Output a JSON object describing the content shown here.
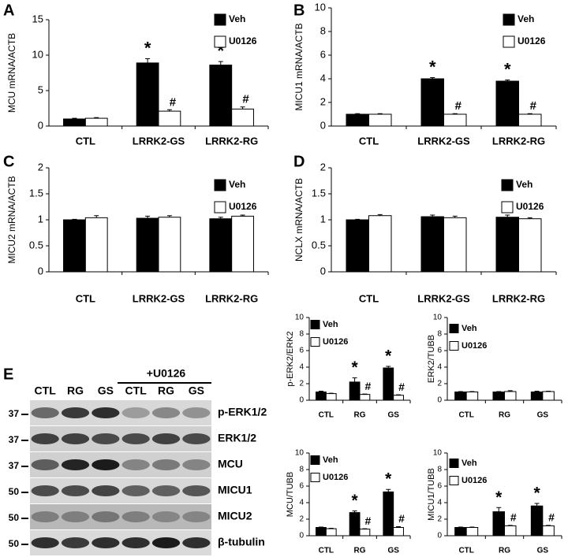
{
  "chart_data": [
    {
      "type": "bar",
      "label": "A",
      "y_label": "MCU mRNA/ACTB",
      "categories": [
        "CTL",
        "LRRK2-GS",
        "LRRK2-RG"
      ],
      "ylim": [
        0,
        15
      ],
      "yticks": [
        0,
        5,
        10,
        15
      ],
      "series": [
        {
          "name": "Veh",
          "color": "#000000",
          "values": [
            1.0,
            8.9,
            8.6
          ],
          "errors": [
            0.1,
            0.6,
            0.5
          ],
          "value_labels": [
            null,
            "*",
            "*"
          ]
        },
        {
          "name": "U0126",
          "color": "#ffffff",
          "values": [
            1.1,
            2.1,
            2.4
          ],
          "errors": [
            0.1,
            0.2,
            0.3
          ],
          "value_labels": [
            null,
            "#",
            "#"
          ]
        }
      ]
    },
    {
      "type": "bar",
      "label": "B",
      "y_label": "MICU1 mRNA/ACTB",
      "categories": [
        "CTL",
        "LRRK2-GS",
        "LRRK2-RG"
      ],
      "ylim": [
        0,
        10
      ],
      "yticks": [
        0,
        2,
        4,
        6,
        8,
        10
      ],
      "series": [
        {
          "name": "Veh",
          "color": "#000000",
          "values": [
            1.0,
            4.0,
            3.8
          ],
          "errors": [
            0.05,
            0.1,
            0.1
          ],
          "value_labels": [
            null,
            "*",
            "*"
          ]
        },
        {
          "name": "U0126",
          "color": "#ffffff",
          "values": [
            1.0,
            1.0,
            1.0
          ],
          "errors": [
            0.05,
            0.05,
            0.05
          ],
          "value_labels": [
            null,
            "#",
            "#"
          ]
        }
      ]
    },
    {
      "type": "bar",
      "label": "C",
      "y_label": "MICU2 mRNA/ACTB",
      "categories": [
        "CTL",
        "LRRK2-GS",
        "LRRK2-RG"
      ],
      "ylim": [
        0,
        2
      ],
      "yticks": [
        0,
        0.5,
        1,
        1.5,
        2
      ],
      "series": [
        {
          "name": "Veh",
          "color": "#000000",
          "values": [
            1.0,
            1.03,
            1.02
          ],
          "errors": [
            0.01,
            0.04,
            0.03
          ]
        },
        {
          "name": "U0126",
          "color": "#ffffff",
          "values": [
            1.04,
            1.05,
            1.07
          ],
          "errors": [
            0.04,
            0.03,
            0.02
          ]
        }
      ]
    },
    {
      "type": "bar",
      "label": "D",
      "y_label": "NCLX mRNA/ACTB",
      "categories": [
        "CTL",
        "LRRK2-GS",
        "LRRK2-RG"
      ],
      "ylim": [
        0,
        2
      ],
      "yticks": [
        0,
        0.5,
        1,
        1.5,
        2
      ],
      "series": [
        {
          "name": "Veh",
          "color": "#000000",
          "values": [
            1.0,
            1.06,
            1.05
          ],
          "errors": [
            0.01,
            0.03,
            0.04
          ]
        },
        {
          "name": "U0126",
          "color": "#ffffff",
          "values": [
            1.08,
            1.04,
            1.02
          ],
          "errors": [
            0.02,
            0.03,
            0.02
          ]
        }
      ]
    },
    {
      "type": "bar",
      "y_label": "p-ERK2/ERK2",
      "categories": [
        "CTL",
        "RG",
        "GS"
      ],
      "ylim": [
        0,
        10
      ],
      "yticks": [
        0,
        2,
        4,
        6,
        8,
        10
      ],
      "series": [
        {
          "name": "Veh",
          "color": "#000000",
          "values": [
            1.0,
            2.2,
            3.9
          ],
          "errors": [
            0.1,
            0.5,
            0.2
          ],
          "value_labels": [
            null,
            "*",
            "*"
          ]
        },
        {
          "name": "U0126",
          "color": "#ffffff",
          "values": [
            0.8,
            0.7,
            0.6
          ],
          "errors": [
            0.05,
            0.05,
            0.05
          ],
          "value_labels": [
            null,
            "#",
            "#"
          ]
        }
      ]
    },
    {
      "type": "bar",
      "y_label": "ERK2/TUBB",
      "categories": [
        "CTL",
        "RG",
        "GS"
      ],
      "ylim": [
        0,
        10
      ],
      "yticks": [
        0,
        2,
        4,
        6,
        8,
        10
      ],
      "series": [
        {
          "name": "Veh",
          "color": "#000000",
          "values": [
            1.0,
            1.0,
            1.0
          ],
          "errors": [
            0.05,
            0.05,
            0.1
          ]
        },
        {
          "name": "U0126",
          "color": "#ffffff",
          "values": [
            1.0,
            1.05,
            1.05
          ],
          "errors": [
            0.05,
            0.1,
            0.05
          ]
        }
      ]
    },
    {
      "type": "bar",
      "y_label": "MCU/TUBB",
      "categories": [
        "CTL",
        "RG",
        "GS"
      ],
      "ylim": [
        0,
        10
      ],
      "yticks": [
        0,
        2,
        4,
        6,
        8,
        10
      ],
      "series": [
        {
          "name": "Veh",
          "color": "#000000",
          "values": [
            1.0,
            2.8,
            5.3
          ],
          "errors": [
            0.05,
            0.2,
            0.3
          ],
          "value_labels": [
            null,
            "*",
            "*"
          ]
        },
        {
          "name": "U0126",
          "color": "#ffffff",
          "values": [
            0.85,
            0.8,
            1.0
          ],
          "errors": [
            0.05,
            0.05,
            0.1
          ],
          "value_labels": [
            null,
            "#",
            "#"
          ]
        }
      ]
    },
    {
      "type": "bar",
      "y_label": "MICU1/TUBB",
      "categories": [
        "CTL",
        "RG",
        "GS"
      ],
      "ylim": [
        0,
        10
      ],
      "yticks": [
        0,
        2,
        4,
        6,
        8,
        10
      ],
      "series": [
        {
          "name": "Veh",
          "color": "#000000",
          "values": [
            1.0,
            2.9,
            3.6
          ],
          "errors": [
            0.05,
            0.5,
            0.3
          ],
          "value_labels": [
            null,
            "*",
            "*"
          ]
        },
        {
          "name": "U0126",
          "color": "#ffffff",
          "values": [
            1.0,
            1.2,
            1.2
          ],
          "errors": [
            0.05,
            0.05,
            0.05
          ],
          "value_labels": [
            null,
            "#",
            "#"
          ]
        }
      ]
    }
  ],
  "blot": {
    "panel_label": "E",
    "treatment": "+U0126",
    "lanes": [
      "CTL",
      "RG",
      "GS",
      "CTL",
      "RG",
      "GS"
    ],
    "rows": [
      {
        "marker": "37",
        "label": "p-ERK1/2"
      },
      {
        "marker": "37",
        "label": "ERK1/2"
      },
      {
        "marker": "37",
        "label": "MCU"
      },
      {
        "marker": "50",
        "label": "MICU1"
      },
      {
        "marker": "50",
        "label": "MICU2"
      },
      {
        "marker": "50",
        "label": "β-tubulin"
      }
    ]
  }
}
